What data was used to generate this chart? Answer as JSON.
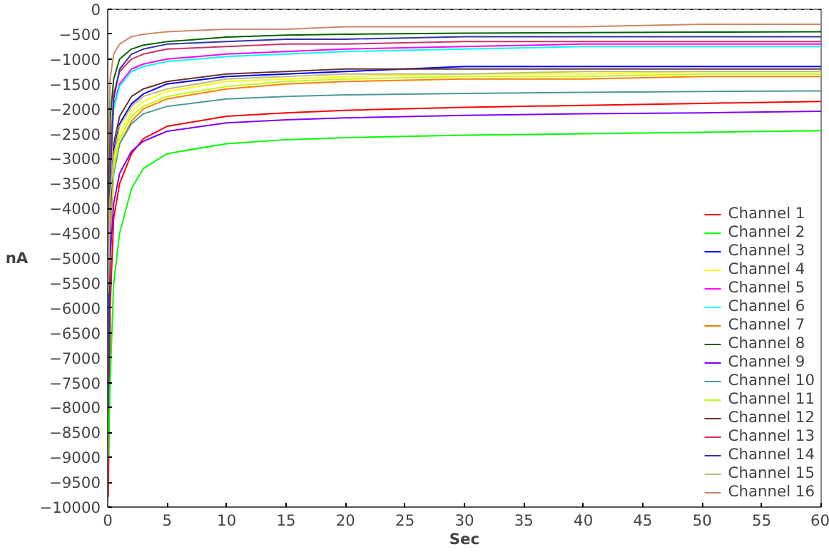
{
  "chart_data": {
    "type": "line",
    "xlabel": "Sec",
    "ylabel": "nA",
    "x": [
      0.05,
      0.2,
      0.5,
      1,
      2,
      3,
      5,
      10,
      15,
      20,
      30,
      40,
      50,
      60
    ],
    "xlim": [
      0,
      60
    ],
    "xticks": [
      0,
      5,
      10,
      15,
      20,
      25,
      30,
      35,
      40,
      45,
      50,
      55,
      60
    ],
    "ylim": [
      -10000,
      0
    ],
    "yticks": [
      -10000,
      -9500,
      -9000,
      -8500,
      -8000,
      -7500,
      -7000,
      -6500,
      -6000,
      -5500,
      -5000,
      -4500,
      -4000,
      -3500,
      -3000,
      -2500,
      -2000,
      -1500,
      -1000,
      -500,
      0
    ],
    "grid": false,
    "legend": "bottom right",
    "marker": "none",
    "line_style": "solid",
    "ref_lines": [
      {
        "axis": "y",
        "value": 0,
        "color": "#000000",
        "line_style": "dotted"
      }
    ],
    "series": [
      {
        "name": "Channel 1",
        "color": "#ff0000",
        "values": [
          -9800,
          -6000,
          -4200,
          -3500,
          -2900,
          -2600,
          -2350,
          -2150,
          -2080,
          -2030,
          -1970,
          -1930,
          -1890,
          -1850
        ]
      },
      {
        "name": "Channel 2",
        "color": "#00ff00",
        "values": [
          -9000,
          -7500,
          -5500,
          -4500,
          -3600,
          -3200,
          -2900,
          -2700,
          -2620,
          -2580,
          -2530,
          -2500,
          -2470,
          -2440
        ]
      },
      {
        "name": "Channel 3",
        "color": "#0000ff",
        "values": [
          null,
          null,
          -2850,
          -2300,
          -1900,
          -1700,
          -1500,
          -1350,
          -1300,
          -1250,
          -1150,
          -1150,
          -1150,
          -1150
        ]
      },
      {
        "name": "Channel 4",
        "color": "#ffff00",
        "values": [
          null,
          null,
          -3100,
          -2500,
          -2050,
          -1850,
          -1650,
          -1450,
          -1400,
          -1350,
          -1300,
          -1300,
          -1250,
          -1250
        ]
      },
      {
        "name": "Channel 5",
        "color": "#ff00ff",
        "values": [
          -5000,
          -3000,
          -1950,
          -1500,
          -1200,
          -1100,
          -1000,
          -900,
          -850,
          -800,
          -750,
          -700,
          -700,
          -700
        ]
      },
      {
        "name": "Channel 6",
        "color": "#00ffff",
        "values": [
          -5000,
          -3000,
          -2000,
          -1550,
          -1250,
          -1150,
          -1050,
          -950,
          -900,
          -850,
          -800,
          -750,
          -750,
          -750
        ]
      },
      {
        "name": "Channel 7",
        "color": "#ff8000",
        "values": [
          -7000,
          -4600,
          -3300,
          -2700,
          -2250,
          -2000,
          -1800,
          -1600,
          -1500,
          -1450,
          -1400,
          -1400,
          -1350,
          -1350
        ]
      },
      {
        "name": "Channel 8",
        "color": "#006400",
        "values": [
          -4000,
          -2200,
          -1400,
          -1000,
          -800,
          -720,
          -650,
          -560,
          -520,
          -500,
          -480,
          -470,
          -460,
          -450
        ]
      },
      {
        "name": "Channel 9",
        "color": "#8000ff",
        "values": [
          -7000,
          -5000,
          -3900,
          -3300,
          -2850,
          -2650,
          -2450,
          -2280,
          -2220,
          -2180,
          -2130,
          -2100,
          -2080,
          -2050
        ]
      },
      {
        "name": "Channel 10",
        "color": "#4d9999",
        "values": [
          -6000,
          -4200,
          -3300,
          -2700,
          -2300,
          -2100,
          -1950,
          -1800,
          -1750,
          -1720,
          -1690,
          -1670,
          -1650,
          -1640
        ]
      },
      {
        "name": "Channel 11",
        "color": "#c0ff00",
        "values": [
          -6500,
          -4300,
          -3200,
          -2600,
          -2150,
          -1950,
          -1750,
          -1550,
          -1450,
          -1400,
          -1350,
          -1350,
          -1300,
          -1300
        ]
      },
      {
        "name": "Channel 12",
        "color": "#663333",
        "values": [
          -7500,
          -4200,
          -2700,
          -2150,
          -1750,
          -1600,
          -1450,
          -1300,
          -1250,
          -1200,
          -1200,
          -1200,
          -1200,
          -1200
        ]
      },
      {
        "name": "Channel 13",
        "color": "#cc3366",
        "values": [
          -6000,
          -3000,
          -1700,
          -1250,
          -1000,
          -900,
          -800,
          -750,
          -700,
          -700,
          -650,
          -650,
          -650,
          -650
        ]
      },
      {
        "name": "Channel 14",
        "color": "#3333aa",
        "values": [
          -8000,
          -3500,
          -1800,
          -1200,
          -900,
          -800,
          -700,
          -650,
          -600,
          -600,
          -550,
          -550,
          -550,
          -550
        ]
      },
      {
        "name": "Channel 15",
        "color": "#bbbb88",
        "values": [
          -5700,
          -3800,
          -2950,
          -2350,
          -1950,
          -1750,
          -1600,
          -1400,
          -1350,
          -1300,
          -1300,
          -1250,
          -1250,
          -1250
        ]
      },
      {
        "name": "Channel 16",
        "color": "#cc8866",
        "values": [
          -3000,
          -1400,
          -900,
          -700,
          -550,
          -500,
          -450,
          -400,
          -400,
          -350,
          -350,
          -350,
          -300,
          -300
        ]
      }
    ]
  }
}
